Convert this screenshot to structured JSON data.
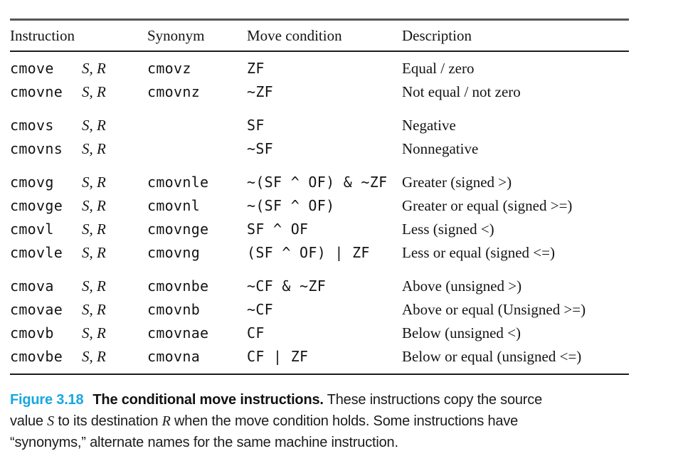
{
  "colors": {
    "accent_figure_label": "#19a6e0",
    "rule_top": "#55565a",
    "rule_dark": "#1c1c1c"
  },
  "table": {
    "headers": {
      "instruction": "Instruction",
      "synonym": "Synonym",
      "condition": "Move condition",
      "description": "Description"
    },
    "groups": [
      {
        "rows": [
          {
            "mnemonic": "cmove",
            "operands": "S, R",
            "synonym": "cmovz",
            "condition": "ZF",
            "description": "Equal / zero"
          },
          {
            "mnemonic": "cmovne",
            "operands": "S, R",
            "synonym": "cmovnz",
            "condition": "~ZF",
            "description": "Not equal / not zero"
          }
        ]
      },
      {
        "rows": [
          {
            "mnemonic": "cmovs",
            "operands": "S, R",
            "synonym": "",
            "condition": "SF",
            "description": "Negative"
          },
          {
            "mnemonic": "cmovns",
            "operands": "S, R",
            "synonym": "",
            "condition": "~SF",
            "description": "Nonnegative"
          }
        ]
      },
      {
        "rows": [
          {
            "mnemonic": "cmovg",
            "operands": "S, R",
            "synonym": "cmovnle",
            "condition": "~(SF ^ OF) & ~ZF",
            "description": "Greater (signed >)"
          },
          {
            "mnemonic": "cmovge",
            "operands": "S, R",
            "synonym": "cmovnl",
            "condition": "~(SF ^ OF)",
            "description": "Greater or equal (signed >=)"
          },
          {
            "mnemonic": "cmovl",
            "operands": "S, R",
            "synonym": "cmovnge",
            "condition": "SF ^ OF",
            "description": "Less (signed <)"
          },
          {
            "mnemonic": "cmovle",
            "operands": "S, R",
            "synonym": "cmovng",
            "condition": "(SF ^ OF) | ZF",
            "description": "Less or equal (signed <=)"
          }
        ]
      },
      {
        "rows": [
          {
            "mnemonic": "cmova",
            "operands": "S, R",
            "synonym": "cmovnbe",
            "condition": "~CF & ~ZF",
            "description": "Above (unsigned >)"
          },
          {
            "mnemonic": "cmovae",
            "operands": "S, R",
            "synonym": "cmovnb",
            "condition": "~CF",
            "description": "Above or equal (Unsigned >=)"
          },
          {
            "mnemonic": "cmovb",
            "operands": "S, R",
            "synonym": "cmovnae",
            "condition": "CF",
            "description": "Below (unsigned <)"
          },
          {
            "mnemonic": "cmovbe",
            "operands": "S, R",
            "synonym": "cmovna",
            "condition": "CF | ZF",
            "description": "Below or equal (unsigned <=)"
          }
        ]
      }
    ]
  },
  "caption": {
    "label": "Figure 3.18",
    "lines": [
      [
        {
          "text": "Figure 3.18",
          "style": "figure-label"
        },
        {
          "text": "The conditional move instructions.",
          "style": "bold"
        },
        {
          "text": " These instructions copy the source",
          "style": "plain"
        }
      ],
      [
        {
          "text": "value ",
          "style": "plain"
        },
        {
          "text": "S",
          "style": "math"
        },
        {
          "text": " to its destination ",
          "style": "plain"
        },
        {
          "text": "R",
          "style": "math"
        },
        {
          "text": " when the move condition holds. Some instructions have",
          "style": "plain"
        }
      ],
      [
        {
          "text": "“synonyms,” alternate names for the same machine instruction.",
          "style": "plain"
        }
      ]
    ]
  }
}
